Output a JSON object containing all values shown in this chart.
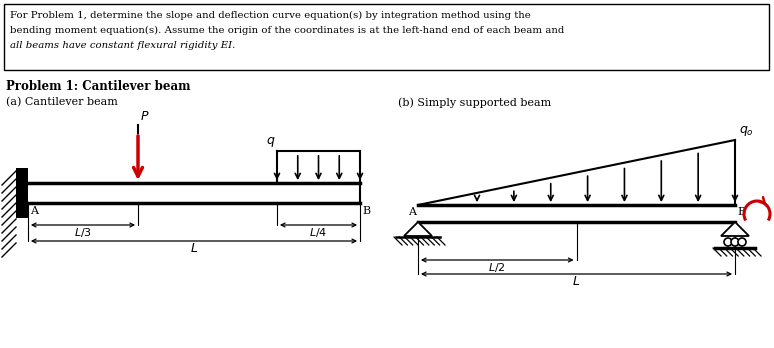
{
  "title_box_text_line1": "For Problem 1, determine the slope and deflection curve equation(s) by integration method using the",
  "title_box_text_line2": "bending moment equation(s). Assume the origin of the coordinates is at the left-hand end of each beam and",
  "title_box_text_line3": "all beams have constant flexural rigidity EI.",
  "problem_label": "Problem 1: Cantilever beam",
  "label_a": "(a) Cantilever beam",
  "label_b": "(b) Simply supported beam",
  "bg_color": "#ffffff",
  "text_color": "#000000",
  "red_color": "#cc0000"
}
